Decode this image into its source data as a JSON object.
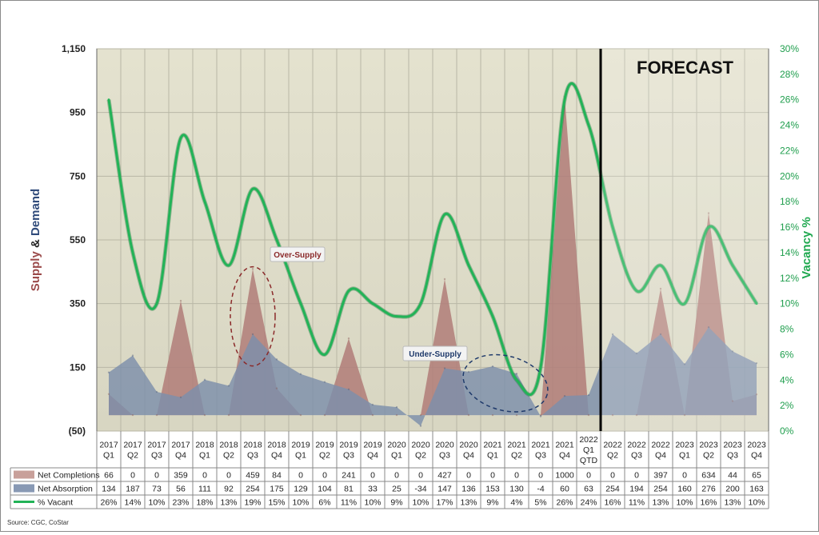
{
  "chart_data": {
    "type": "area",
    "source": "Source: CGC, CoStar",
    "forecast_label": "FORECAST",
    "ylabel_parts": [
      {
        "text": "Supply",
        "color": "#9b4a4a"
      },
      {
        "text": " & ",
        "color": "#222222"
      },
      {
        "text": "Demand",
        "color": "#2f4a7a"
      }
    ],
    "y2label": "Vacancy %",
    "ylim": [
      -50,
      1150
    ],
    "yticks": [
      -50,
      150,
      350,
      550,
      750,
      950,
      1150
    ],
    "ytick_labels": [
      "(50)",
      "150",
      "350",
      "550",
      "750",
      "950",
      "1,150"
    ],
    "y2lim": [
      0,
      30
    ],
    "y2ticks": [
      0,
      2,
      4,
      6,
      8,
      10,
      12,
      14,
      16,
      18,
      20,
      22,
      24,
      26,
      28,
      30
    ],
    "categories": [
      [
        "2017",
        "Q1"
      ],
      [
        "2017",
        "Q2"
      ],
      [
        "2017",
        "Q3"
      ],
      [
        "2017",
        "Q4"
      ],
      [
        "2018",
        "Q1"
      ],
      [
        "2018",
        "Q2"
      ],
      [
        "2018",
        "Q3"
      ],
      [
        "2018",
        "Q4"
      ],
      [
        "2019",
        "Q1"
      ],
      [
        "2019",
        "Q2"
      ],
      [
        "2019",
        "Q3"
      ],
      [
        "2019",
        "Q4"
      ],
      [
        "2020",
        "Q1"
      ],
      [
        "2020",
        "Q2"
      ],
      [
        "2020",
        "Q3"
      ],
      [
        "2020",
        "Q4"
      ],
      [
        "2021",
        "Q1"
      ],
      [
        "2021",
        "Q2"
      ],
      [
        "2021",
        "Q3"
      ],
      [
        "2021",
        "Q4"
      ],
      [
        "2022",
        "Q1",
        "QTD"
      ],
      [
        "2022",
        "Q2"
      ],
      [
        "2022",
        "Q3"
      ],
      [
        "2022",
        "Q4"
      ],
      [
        "2023",
        "Q1"
      ],
      [
        "2023",
        "Q2"
      ],
      [
        "2023",
        "Q3"
      ],
      [
        "2023",
        "Q4"
      ]
    ],
    "forecast_start_index": 21,
    "series": [
      {
        "name": "Net Completions",
        "kind": "area",
        "color": "#c8a09a",
        "values": [
          66,
          0,
          0,
          359,
          0,
          0,
          459,
          84,
          0,
          0,
          241,
          0,
          0,
          0,
          427,
          0,
          0,
          0,
          0,
          1000,
          0,
          0,
          0,
          397,
          0,
          634,
          44,
          65
        ],
        "labels": [
          "66",
          "0",
          "0",
          "359",
          "0",
          "0",
          "459",
          "84",
          "0",
          "0",
          "241",
          "0",
          "0",
          "0",
          "427",
          "0",
          "0",
          "0",
          "0",
          "1000",
          "0",
          "0",
          "0",
          "397",
          "0",
          "634",
          "44",
          "65"
        ]
      },
      {
        "name": "Net Absorption",
        "kind": "area",
        "color": "#8899b4",
        "values": [
          134,
          187,
          73,
          56,
          111,
          92,
          254,
          175,
          129,
          104,
          81,
          33,
          25,
          -34,
          147,
          136,
          153,
          130,
          -4,
          60,
          63,
          254,
          194,
          254,
          160,
          276,
          200,
          163
        ],
        "labels": [
          "134",
          "187",
          "73",
          "56",
          "111",
          "92",
          "254",
          "175",
          "129",
          "104",
          "81",
          "33",
          "25",
          "-34",
          "147",
          "136",
          "153",
          "130",
          "-4",
          "60",
          "63",
          "254",
          "194",
          "254",
          "160",
          "276",
          "200",
          "163"
        ]
      },
      {
        "name": "% Vacant",
        "kind": "line",
        "axis": "right",
        "color": "#1fa84f",
        "values": [
          26,
          14,
          10,
          23,
          18,
          13,
          19,
          15,
          10,
          6,
          11,
          10,
          9,
          10,
          17,
          13,
          9,
          4,
          5,
          26,
          24,
          16,
          11,
          13,
          10,
          16,
          13,
          10
        ],
        "labels": [
          "26%",
          "14%",
          "10%",
          "23%",
          "18%",
          "13%",
          "19%",
          "15%",
          "10%",
          "6%",
          "11%",
          "10%",
          "9%",
          "10%",
          "17%",
          "13%",
          "9%",
          "4%",
          "5%",
          "26%",
          "24%",
          "16%",
          "11%",
          "13%",
          "10%",
          "16%",
          "13%",
          "10%"
        ]
      }
    ],
    "annotations": [
      {
        "text": "Over-Supply",
        "color": "#8b2a2a",
        "anchor_index": 6
      },
      {
        "text": "Under-Supply",
        "color": "#1f3a6b",
        "anchor_index": 16
      }
    ]
  }
}
